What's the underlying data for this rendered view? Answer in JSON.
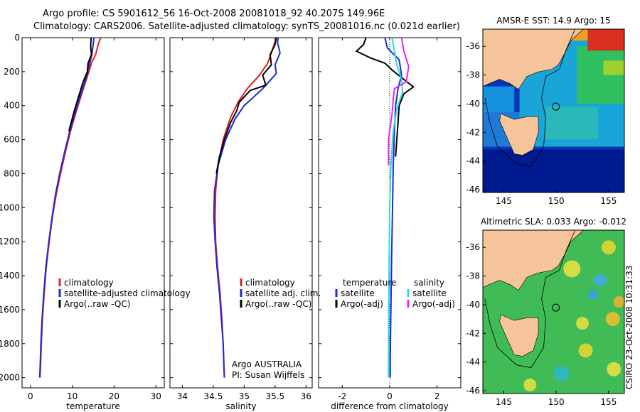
{
  "title_line1": "Argo profile: CS 5901612_56 16-Oct-2008 20081018_92 40.207S 149.96E",
  "title_line2": "Climatology: CARS2006. Satellite-adjusted climatology: synTS_20081016.nc (0.021d earlier)",
  "side_label": "CSIRO 23-Oct-2008 10:31:33",
  "colors": {
    "climatology": "#e02020",
    "satellite": "#1a2ad6",
    "argo": "#000000",
    "satellite_salinity": "#22dddd",
    "argo_adj_salinity": "#ee22ee"
  },
  "chart_data": [
    {
      "type": "line",
      "name": "temperature-profile",
      "xlabel": "temperature",
      "ylabel": "",
      "xlim": [
        -2,
        32
      ],
      "ylim": [
        2060,
        0
      ],
      "xticks": [
        0,
        10,
        20,
        30
      ],
      "yticks": [
        0,
        200,
        400,
        600,
        800,
        1000,
        1200,
        1400,
        1600,
        1800,
        2000
      ],
      "legend": [
        "climatology",
        "satellite-adjusted climatology",
        "Argo(..raw -QC)"
      ],
      "series": [
        {
          "name": "climatology",
          "color_key": "climatology",
          "points": [
            [
              16.8,
              0
            ],
            [
              16.2,
              40
            ],
            [
              15.6,
              100
            ],
            [
              14.6,
              150
            ],
            [
              13.6,
              230
            ],
            [
              12.4,
              320
            ],
            [
              11.0,
              430
            ],
            [
              9.6,
              550
            ],
            [
              8.3,
              680
            ],
            [
              7.2,
              800
            ],
            [
              6.2,
              920
            ],
            [
              5.3,
              1050
            ],
            [
              4.5,
              1200
            ],
            [
              3.8,
              1350
            ],
            [
              3.3,
              1500
            ],
            [
              2.9,
              1650
            ],
            [
              2.6,
              1800
            ],
            [
              2.4,
              1950
            ],
            [
              2.3,
              2000
            ]
          ]
        },
        {
          "name": "satellite",
          "color_key": "satellite",
          "points": [
            [
              15.2,
              0
            ],
            [
              15.0,
              40
            ],
            [
              14.7,
              100
            ],
            [
              14.2,
              150
            ],
            [
              13.4,
              230
            ],
            [
              12.2,
              320
            ],
            [
              10.8,
              430
            ],
            [
              9.4,
              550
            ],
            [
              8.1,
              680
            ],
            [
              7.0,
              800
            ],
            [
              6.0,
              920
            ],
            [
              5.2,
              1050
            ],
            [
              4.4,
              1200
            ],
            [
              3.7,
              1350
            ],
            [
              3.2,
              1500
            ],
            [
              2.8,
              1650
            ],
            [
              2.5,
              1800
            ],
            [
              2.3,
              1950
            ],
            [
              2.2,
              2000
            ]
          ]
        },
        {
          "name": "argo",
          "color_key": "argo",
          "points": [
            [
              14.5,
              0
            ],
            [
              14.4,
              50
            ],
            [
              14.6,
              100
            ],
            [
              13.8,
              150
            ],
            [
              13.6,
              200
            ],
            [
              12.6,
              260
            ],
            [
              11.6,
              340
            ],
            [
              10.5,
              430
            ],
            [
              9.2,
              550
            ]
          ]
        }
      ]
    },
    {
      "type": "line",
      "name": "salinity-profile",
      "xlabel": "salinity",
      "ylabel": "",
      "xlim": [
        33.8,
        36.1
      ],
      "ylim": [
        2060,
        0
      ],
      "xticks": [
        34,
        34.5,
        35,
        35.5,
        36
      ],
      "legend": [
        "climatology",
        "satellite adj. clim.",
        "Argo(..raw -QC)"
      ],
      "annotation": [
        "Argo AUSTRALIA",
        "PI: Susan Wijffels"
      ],
      "series": [
        {
          "name": "climatology",
          "color_key": "climatology",
          "points": [
            [
              35.52,
              0
            ],
            [
              35.45,
              80
            ],
            [
              35.38,
              150
            ],
            [
              35.25,
              220
            ],
            [
              35.05,
              300
            ],
            [
              34.9,
              380
            ],
            [
              34.78,
              470
            ],
            [
              34.66,
              600
            ],
            [
              34.58,
              750
            ],
            [
              34.54,
              900
            ],
            [
              34.53,
              1050
            ],
            [
              34.54,
              1200
            ],
            [
              34.57,
              1350
            ],
            [
              34.61,
              1500
            ],
            [
              34.64,
              1650
            ],
            [
              34.66,
              1800
            ],
            [
              34.68,
              2000
            ]
          ]
        },
        {
          "name": "satellite",
          "color_key": "satellite",
          "points": [
            [
              35.55,
              0
            ],
            [
              35.54,
              30
            ],
            [
              35.58,
              90
            ],
            [
              35.5,
              160
            ],
            [
              35.52,
              210
            ],
            [
              35.4,
              260
            ],
            [
              35.3,
              300
            ],
            [
              35.15,
              350
            ],
            [
              35.0,
              400
            ],
            [
              34.85,
              480
            ],
            [
              34.7,
              600
            ],
            [
              34.58,
              750
            ],
            [
              34.52,
              900
            ],
            [
              34.51,
              1050
            ],
            [
              34.53,
              1200
            ],
            [
              34.56,
              1350
            ],
            [
              34.6,
              1500
            ],
            [
              34.63,
              1650
            ],
            [
              34.66,
              1800
            ],
            [
              34.68,
              2000
            ]
          ]
        },
        {
          "name": "argo",
          "color_key": "argo",
          "points": [
            [
              35.52,
              0
            ],
            [
              35.5,
              40
            ],
            [
              35.42,
              100
            ],
            [
              35.44,
              160
            ],
            [
              35.3,
              220
            ],
            [
              35.35,
              280
            ],
            [
              35.1,
              310
            ],
            [
              34.92,
              380
            ],
            [
              34.88,
              430
            ],
            [
              34.78,
              500
            ],
            [
              34.68,
              600
            ],
            [
              34.6,
              700
            ],
            [
              34.55,
              800
            ]
          ]
        }
      ]
    },
    {
      "type": "line",
      "name": "difference-profile",
      "xlabel": "difference from climatology",
      "ylabel": "",
      "xlim": [
        -3,
        3
      ],
      "ylim": [
        2060,
        0
      ],
      "xticks": [
        -2,
        0,
        2
      ],
      "legend_temperature": [
        "temperature",
        "satellite",
        "Argo(-adj)"
      ],
      "legend_salinity": [
        "salinity",
        "satellite",
        "Argo(-adj)"
      ],
      "series": [
        {
          "name": "temperature satellite",
          "color_key": "satellite",
          "points": [
            [
              -0.2,
              0
            ],
            [
              -0.1,
              60
            ],
            [
              0.4,
              130
            ],
            [
              0.5,
              220
            ],
            [
              0.35,
              300
            ],
            [
              0.25,
              400
            ],
            [
              0.2,
              550
            ],
            [
              0.15,
              750
            ],
            [
              0.12,
              1000
            ],
            [
              0.08,
              1300
            ],
            [
              0.05,
              1600
            ],
            [
              0.03,
              1800
            ],
            [
              0.02,
              2000
            ]
          ]
        },
        {
          "name": "temperature argo",
          "color_key": "argo",
          "points": [
            [
              -1.0,
              0
            ],
            [
              -1.1,
              40
            ],
            [
              -1.4,
              80
            ],
            [
              -0.8,
              120
            ],
            [
              -0.2,
              150
            ],
            [
              0.1,
              190
            ],
            [
              0.45,
              230
            ],
            [
              1.0,
              290
            ],
            [
              0.6,
              330
            ],
            [
              0.4,
              400
            ],
            [
              0.35,
              500
            ],
            [
              0.3,
              600
            ],
            [
              0.25,
              700
            ]
          ]
        },
        {
          "name": "salinity satellite",
          "color_key": "satellite_salinity",
          "points": [
            [
              0.1,
              0
            ],
            [
              0.2,
              80
            ],
            [
              0.3,
              160
            ],
            [
              0.5,
              250
            ],
            [
              0.55,
              320
            ],
            [
              0.3,
              420
            ],
            [
              0.15,
              550
            ],
            [
              0.05,
              750
            ],
            [
              0.0,
              1000
            ],
            [
              -0.02,
              1300
            ],
            [
              -0.04,
              1600
            ],
            [
              -0.05,
              2000
            ]
          ]
        },
        {
          "name": "salinity argo",
          "color_key": "argo_adj_salinity",
          "points": [
            [
              0.5,
              0
            ],
            [
              0.6,
              80
            ],
            [
              0.8,
              170
            ],
            [
              0.7,
              260
            ],
            [
              0.2,
              300
            ],
            [
              0.15,
              360
            ],
            [
              0.1,
              450
            ],
            [
              -0.05,
              600
            ],
            [
              -0.05,
              750
            ]
          ]
        }
      ]
    },
    {
      "type": "heatmap",
      "name": "sst-map",
      "title": "AMSR-E SST: 14.9 Argo: 15",
      "xticks": [
        145,
        150,
        155
      ],
      "yticks": [
        -36,
        -38,
        -40,
        -42,
        -44,
        -46
      ],
      "xlim": [
        143,
        156.5
      ],
      "ylim": [
        -46.2,
        -34.8
      ],
      "argo_position": [
        149.96,
        -40.207
      ],
      "sst_argo": 15,
      "sst_satellite": 14.9
    },
    {
      "type": "heatmap",
      "name": "sla-map",
      "title": "Altimetric SLA: 0.033 Argo: -0.012",
      "xticks": [
        145,
        150,
        155
      ],
      "yticks": [
        -36,
        -38,
        -40,
        -42,
        -44,
        -46
      ],
      "xlim": [
        143,
        156.5
      ],
      "ylim": [
        -46.2,
        -34.8
      ],
      "argo_position": [
        149.96,
        -40.207
      ],
      "sla_satellite": 0.033,
      "sla_argo": -0.012
    }
  ]
}
